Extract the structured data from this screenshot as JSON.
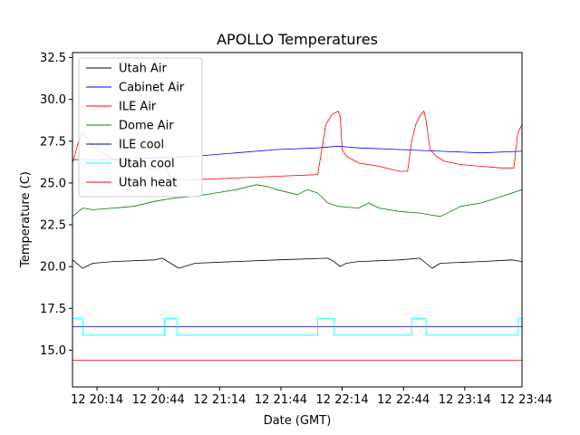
{
  "chart_data": {
    "type": "line",
    "title": "APOLLO Temperatures",
    "xlabel": "Date (GMT)",
    "ylabel": "Temperature (C)",
    "xlim": [
      0,
      220
    ],
    "ylim": [
      12.8,
      32.8
    ],
    "x_ticks": [
      {
        "value": 12,
        "label": "12 20:14"
      },
      {
        "value": 42,
        "label": "12 20:44"
      },
      {
        "value": 72,
        "label": "12 21:14"
      },
      {
        "value": 102,
        "label": "12 21:44"
      },
      {
        "value": 132,
        "label": "12 22:14"
      },
      {
        "value": 162,
        "label": "12 22:44"
      },
      {
        "value": 192,
        "label": "12 23:14"
      },
      {
        "value": 222,
        "label": "12 23:44"
      }
    ],
    "y_ticks": [
      {
        "value": 15.0,
        "label": "15.0"
      },
      {
        "value": 17.5,
        "label": "17.5"
      },
      {
        "value": 20.0,
        "label": "20.0"
      },
      {
        "value": 22.5,
        "label": "22.5"
      },
      {
        "value": 25.0,
        "label": "25.0"
      },
      {
        "value": 27.5,
        "label": "27.5"
      },
      {
        "value": 30.0,
        "label": "30.0"
      },
      {
        "value": 32.5,
        "label": "32.5"
      }
    ],
    "legend_position": "top-left",
    "series": [
      {
        "name": "Utah Air",
        "color": "#000000",
        "x": [
          0,
          5,
          10,
          20,
          40,
          44,
          48,
          52,
          60,
          80,
          100,
          125,
          128,
          131,
          134,
          140,
          160,
          170,
          173,
          176,
          180,
          200,
          215,
          220
        ],
        "y": [
          20.4,
          19.9,
          20.2,
          20.3,
          20.4,
          20.5,
          20.2,
          19.9,
          20.2,
          20.3,
          20.4,
          20.5,
          20.3,
          20.0,
          20.2,
          20.3,
          20.4,
          20.5,
          20.2,
          19.9,
          20.2,
          20.3,
          20.4,
          20.3
        ]
      },
      {
        "name": "Cabinet Air",
        "color": "#0000ff",
        "x": [
          0,
          20,
          40,
          60,
          80,
          100,
          120,
          130,
          140,
          160,
          180,
          200,
          220
        ],
        "y": [
          26.4,
          26.4,
          26.5,
          26.6,
          26.8,
          27.0,
          27.1,
          27.2,
          27.1,
          27.0,
          26.9,
          26.8,
          26.9
        ]
      },
      {
        "name": "ILE Air",
        "color": "#ff0000",
        "x": [
          0,
          3,
          5,
          10,
          15,
          20,
          25,
          30,
          35,
          40,
          45,
          48,
          52,
          60,
          80,
          100,
          120,
          122,
          124,
          127,
          130,
          131,
          132,
          134,
          137,
          140,
          150,
          160,
          164,
          166,
          168,
          170,
          172,
          173,
          175,
          178,
          182,
          190,
          200,
          210,
          216,
          217,
          218,
          220
        ],
        "y": [
          26.2,
          27.5,
          28.0,
          27.2,
          26.8,
          26.4,
          26.2,
          26.0,
          26.0,
          25.8,
          26.0,
          25.3,
          25.2,
          25.2,
          25.3,
          25.4,
          25.5,
          27.0,
          28.5,
          29.1,
          29.3,
          29.0,
          27.0,
          26.6,
          26.4,
          26.2,
          26.0,
          25.7,
          25.7,
          27.5,
          28.5,
          29.0,
          29.3,
          28.8,
          27.0,
          26.6,
          26.3,
          26.1,
          26.0,
          25.9,
          25.9,
          27.0,
          28.0,
          28.5
        ]
      },
      {
        "name": "Dome Air",
        "color": "#008000",
        "x": [
          0,
          5,
          10,
          20,
          30,
          40,
          50,
          60,
          70,
          80,
          90,
          95,
          100,
          110,
          115,
          120,
          125,
          130,
          140,
          145,
          150,
          160,
          170,
          175,
          180,
          185,
          190,
          200,
          205,
          210,
          220
        ],
        "y": [
          23.0,
          23.5,
          23.4,
          23.5,
          23.6,
          23.9,
          24.1,
          24.2,
          24.4,
          24.6,
          24.9,
          24.8,
          24.6,
          24.3,
          24.6,
          24.4,
          23.8,
          23.6,
          23.5,
          23.8,
          23.5,
          23.3,
          23.2,
          23.1,
          23.0,
          23.3,
          23.6,
          23.8,
          24.0,
          24.2,
          24.6
        ]
      },
      {
        "name": "ILE cool",
        "color": "#00008b",
        "x": [
          0,
          220
        ],
        "y": [
          16.4,
          16.4
        ]
      },
      {
        "name": "Utah cool",
        "color": "#00ffff",
        "x": [
          0,
          5,
          5,
          45,
          45,
          51,
          51,
          120,
          120,
          128,
          128,
          166,
          166,
          173,
          173,
          218,
          218,
          220
        ],
        "y": [
          16.9,
          16.9,
          15.9,
          15.9,
          16.9,
          16.9,
          15.9,
          15.9,
          16.9,
          16.9,
          15.9,
          15.9,
          16.9,
          16.9,
          15.9,
          15.9,
          16.9,
          16.9
        ]
      },
      {
        "name": "Utah heat",
        "color": "#ff0000",
        "x": [
          0,
          220
        ],
        "y": [
          14.4,
          14.4
        ]
      }
    ]
  }
}
